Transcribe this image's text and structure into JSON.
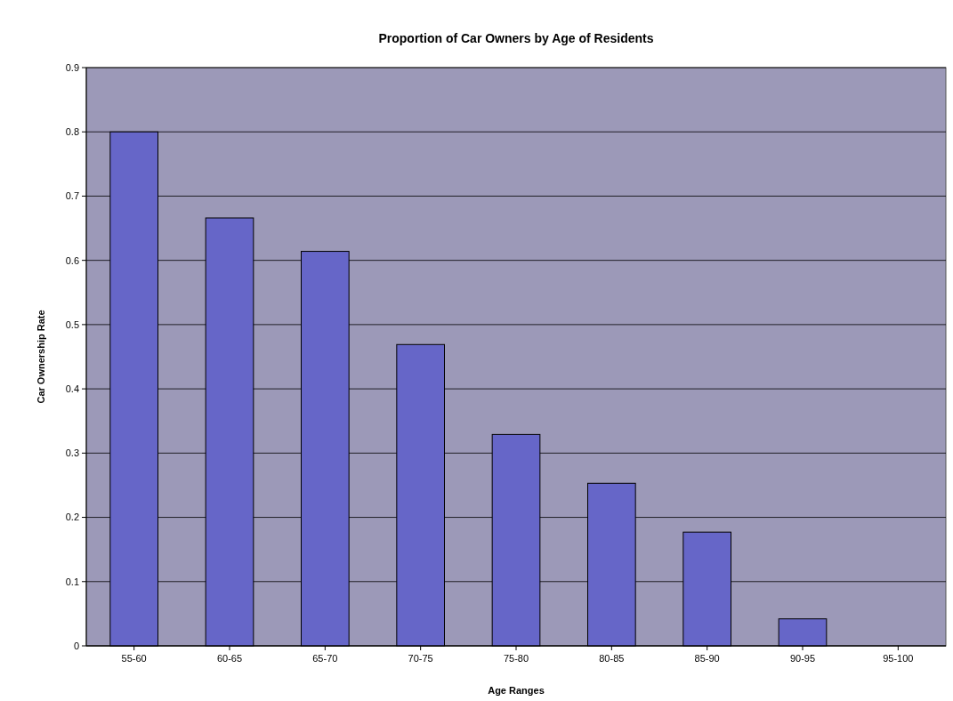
{
  "chart_data": {
    "type": "bar",
    "title": "Proportion of Car Owners by Age of Residents",
    "xlabel": "Age Ranges",
    "ylabel": "Car Ownership Rate",
    "categories": [
      "55-60",
      "60-65",
      "65-70",
      "70-75",
      "75-80",
      "80-85",
      "85-90",
      "90-95",
      "95-100"
    ],
    "values": [
      0.8,
      0.666,
      0.614,
      0.469,
      0.329,
      0.253,
      0.177,
      0.042,
      0
    ],
    "color": "#6666c8",
    "ylim": [
      0,
      0.9
    ],
    "yticks": [
      0,
      0.1,
      0.2,
      0.3,
      0.4,
      0.5,
      0.6,
      0.7,
      0.8,
      0.9
    ],
    "grid": "y"
  }
}
